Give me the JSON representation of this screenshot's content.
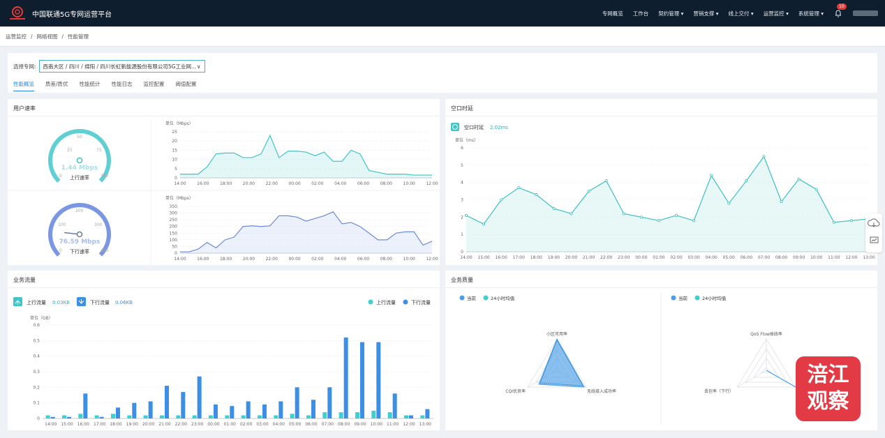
{
  "app": {
    "title": "中国联通5G专网运营平台"
  },
  "nav": {
    "items": [
      "专网概览",
      "工作台",
      "契约管理 ▾",
      "营销支撑 ▾",
      "线上交付 ▾",
      "运营监控 ▾",
      "系统管理 ▾"
    ],
    "badge": "10"
  },
  "breadcrumb": [
    "运营监控",
    "/",
    "网络视图",
    "/",
    "性能管理"
  ],
  "filter": {
    "label": "选择专网:",
    "value": "西南大区 / 四川 / 绵阳 / 四川长虹新能源股份有限公司5G工业网..."
  },
  "tabs": [
    "性能概览",
    "质差/质优",
    "性能统计",
    "性能日志",
    "监控配置",
    "阈值配置"
  ],
  "user_rate": {
    "title": "用户速率",
    "uplink": {
      "value": "1.44 Mbps",
      "label": "上行速率",
      "ticks": [
        "25",
        "50",
        "75",
        "0",
        "100"
      ],
      "level": 0.0144
    },
    "downlink": {
      "value": "76.59 Mbps",
      "label": "下行速率",
      "ticks": [
        "100",
        "200",
        "300",
        "0",
        "400"
      ],
      "level": 0.191
    },
    "up_chart_unit": "单位（Mbps）",
    "down_chart_unit": "单位（Mbps）"
  },
  "latency": {
    "title": "空口时延",
    "legend_label": "空口时延",
    "legend_value": "2.02ms",
    "unit": "单位（ms）"
  },
  "traffic": {
    "title": "业务流量",
    "up_label": "上行流量",
    "up_value": "0.03KB",
    "down_label": "下行流量",
    "down_value": "0.06KB",
    "legend_up": "上行流量",
    "legend_down": "下行流量",
    "unit": "单位（GB）",
    "up_color": "#3fcfd0",
    "down_color": "#3d8fe6"
  },
  "quality": {
    "title": "业务质量",
    "legend_now": "当前",
    "legend_avg": "24小时均值",
    "radar1_axes": [
      "小区可用率",
      "无线接入成功率",
      "CQI优良率"
    ],
    "radar2_axes": [
      "QoS Flow掉线率",
      "",
      "丢包率（下行）"
    ]
  },
  "watermark": "涪江观察",
  "chart_data": [
    {
      "type": "area",
      "title": "上行速率",
      "ylabel": "单位（Mbps）",
      "ylim": [
        0,
        25
      ],
      "yticks": [
        0,
        5,
        10,
        15,
        20,
        25
      ],
      "xticks": [
        "14:00",
        "16:00",
        "18:00",
        "20:00",
        "22:00",
        "00:00",
        "02:00",
        "04:00",
        "06:00",
        "08:00",
        "10:00",
        "12:00"
      ],
      "values": [
        2,
        2,
        2,
        6,
        13,
        13.5,
        13.5,
        11,
        11,
        13,
        23,
        11,
        14.5,
        14.5,
        14,
        12,
        14,
        9,
        9,
        15,
        13,
        4,
        3,
        2,
        2,
        2,
        1.5,
        1.5,
        1.5
      ]
    },
    {
      "type": "area",
      "title": "下行速率",
      "ylabel": "单位（Mbps）",
      "ylim": [
        0,
        350
      ],
      "yticks": [
        0,
        50,
        100,
        150,
        200,
        250,
        300,
        350
      ],
      "xticks": [
        "14:00",
        "16:00",
        "18:00",
        "20:00",
        "22:00",
        "00:00",
        "02:00",
        "04:00",
        "06:00",
        "08:00",
        "10:00",
        "12:00"
      ],
      "values": [
        10,
        10,
        30,
        80,
        40,
        100,
        120,
        200,
        205,
        200,
        205,
        280,
        280,
        270,
        240,
        260,
        280,
        310,
        220,
        230,
        200,
        150,
        100,
        100,
        150,
        160,
        160,
        60,
        90
      ]
    },
    {
      "type": "area",
      "title": "空口时延",
      "ylabel": "单位（ms）",
      "ylim": [
        0,
        6
      ],
      "yticks": [
        0,
        1,
        2,
        3,
        4,
        5,
        6
      ],
      "x": [
        "14:00",
        "15:00",
        "16:00",
        "17:00",
        "18:00",
        "19:00",
        "20:00",
        "21:00",
        "22:00",
        "23:00",
        "00:00",
        "01:00",
        "02:00",
        "03:00",
        "04:00",
        "05:00",
        "06:00",
        "07:00",
        "08:00",
        "09:00",
        "10:00",
        "11:00",
        "12:00",
        "13:00"
      ],
      "values": [
        2.1,
        1.6,
        3.0,
        3.7,
        3.3,
        2.5,
        2.2,
        3.5,
        4.1,
        2.2,
        2.0,
        1.8,
        2.1,
        1.8,
        4.4,
        2.8,
        4.1,
        5.5,
        2.9,
        4.2,
        3.6,
        1.7,
        1.8,
        1.9
      ]
    },
    {
      "type": "bar",
      "title": "业务流量",
      "ylabel": "单位（GB）",
      "ylim": [
        0,
        0.6
      ],
      "yticks": [
        0,
        0.1,
        0.2,
        0.3,
        0.4,
        0.5,
        0.6
      ],
      "categories": [
        "14:00",
        "15:00",
        "16:00",
        "17:00",
        "18:00",
        "19:00",
        "20:00",
        "21:00",
        "22:00",
        "23:00",
        "00:00",
        "01:00",
        "02:00",
        "03:00",
        "04:00",
        "05:00",
        "06:00",
        "07:00",
        "08:00",
        "09:00",
        "10:00",
        "11:00",
        "12:00",
        "13:00"
      ],
      "series": [
        {
          "name": "上行流量",
          "values": [
            0.02,
            0.02,
            0.03,
            0.02,
            0.03,
            0.02,
            0.02,
            0.02,
            0.02,
            0.02,
            0.02,
            0.02,
            0.02,
            0.02,
            0.02,
            0.03,
            0.02,
            0.04,
            0.04,
            0.04,
            0.05,
            0.04,
            0.02,
            0.02
          ]
        },
        {
          "name": "下行流量",
          "values": [
            0.01,
            0.01,
            0.16,
            0.01,
            0.07,
            0.1,
            0.11,
            0.21,
            0.17,
            0.27,
            0.09,
            0.08,
            0.11,
            0.09,
            0.11,
            0.2,
            0.12,
            0.2,
            0.52,
            0.49,
            0.49,
            0.16,
            0.02,
            0.06
          ]
        }
      ]
    }
  ]
}
